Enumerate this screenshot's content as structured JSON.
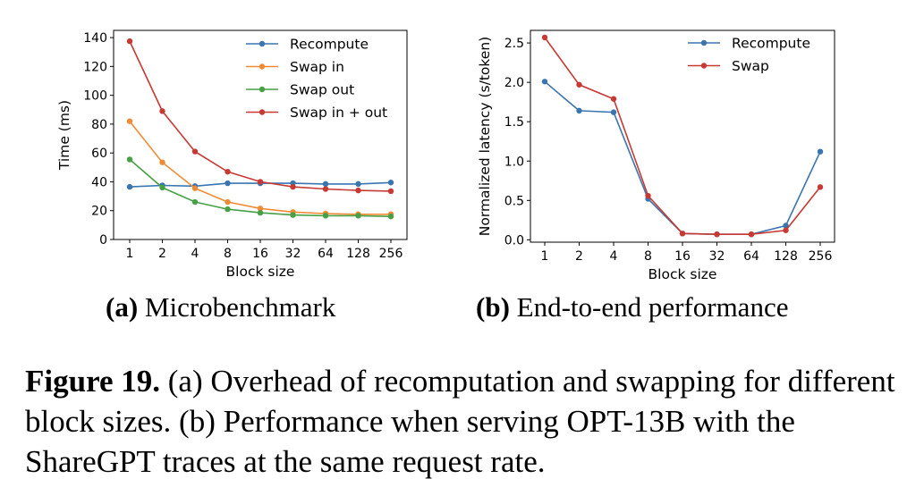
{
  "chart_data": [
    {
      "type": "line",
      "xlabel": "Block size",
      "ylabel": "Time (ms)",
      "categories": [
        "1",
        "2",
        "4",
        "8",
        "16",
        "32",
        "64",
        "128",
        "256"
      ],
      "y_ticks": [
        "0",
        "20",
        "40",
        "60",
        "80",
        "100",
        "120",
        "140"
      ],
      "ylim": [
        0,
        145
      ],
      "legend_position": "top-right",
      "grid": false,
      "series": [
        {
          "name": "Recompute",
          "color": "#3a75b0",
          "values": [
            36.5,
            37.5,
            37,
            39,
            39,
            39,
            38.5,
            38.5,
            39.5
          ]
        },
        {
          "name": "Swap in",
          "color": "#ef8a35",
          "values": [
            82,
            53.5,
            35.5,
            26,
            21.5,
            19,
            18,
            17.5,
            17.5
          ]
        },
        {
          "name": "Swap out",
          "color": "#47a046",
          "values": [
            55.5,
            36,
            26,
            21,
            18.5,
            17,
            16.5,
            16.5,
            16
          ]
        },
        {
          "name": "Swap in + out",
          "color": "#c73a33",
          "values": [
            137.5,
            89,
            61,
            47,
            40,
            36.5,
            35,
            34,
            33.5
          ]
        }
      ]
    },
    {
      "type": "line",
      "xlabel": "Block size",
      "ylabel": "Normalized latency (s/token)",
      "categories": [
        "1",
        "2",
        "4",
        "8",
        "16",
        "32",
        "64",
        "128",
        "256"
      ],
      "y_ticks": [
        "0.0",
        "0.5",
        "1.0",
        "1.5",
        "2.0",
        "2.5"
      ],
      "ylim": [
        -0.03,
        2.66
      ],
      "legend_position": "top-right",
      "grid": false,
      "series": [
        {
          "name": "Recompute",
          "color": "#3a75b0",
          "values": [
            2.01,
            1.64,
            1.62,
            0.52,
            0.08,
            0.07,
            0.07,
            0.18,
            1.12
          ]
        },
        {
          "name": "Swap",
          "color": "#c73a33",
          "values": [
            2.57,
            1.97,
            1.79,
            0.56,
            0.08,
            0.07,
            0.07,
            0.12,
            0.67
          ]
        }
      ]
    }
  ],
  "subcaptions": {
    "a_label": "(a)",
    "a_text": "Microbenchmark",
    "b_label": "(b)",
    "b_text": "End-to-end performance"
  },
  "figure_caption": {
    "label": "Figure 19.",
    "text": "(a) Overhead of recomputation and swapping for different block sizes. (b) Performance when serving OPT-13B with the ShareGPT traces at the same request rate."
  }
}
